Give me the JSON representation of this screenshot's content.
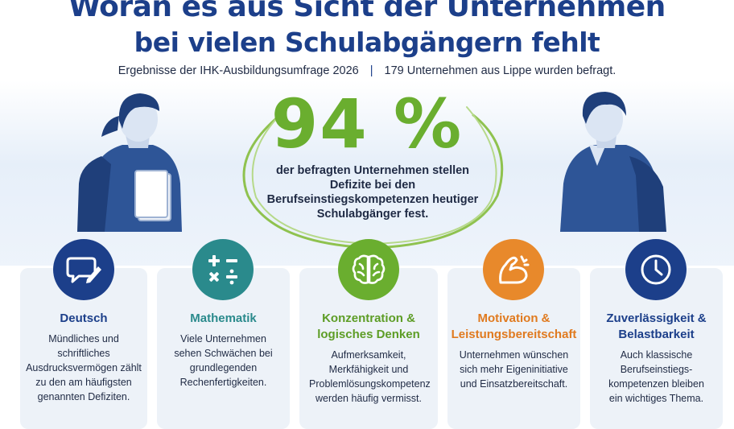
{
  "header": {
    "title_line1": "Woran es aus Sicht der Unternehmen",
    "title_line2": "bei vielen Schulabgängern fehlt",
    "subtitle_left": "Ergebnisse der IHK-Ausbildungsumfrage 2026",
    "subtitle_separator": "|",
    "subtitle_right": "179 Unternehmen aus Lippe wurden befragt."
  },
  "highlight": {
    "value": "94 %",
    "description": "der befragten Unternehmen stellen Defizite bei den Berufseinstiegskompetenzen heutiger Schulabgänger fest."
  },
  "colors": {
    "title": "#1c3f8a",
    "accent_green": "#6aae2f",
    "navy": "#1c3f8a",
    "teal": "#2a8a8c",
    "green": "#6aae2f",
    "orange": "#e8892b"
  },
  "cards": [
    {
      "icon": "speech-bubble-pen-icon",
      "title": "Deutsch",
      "body": "Mündliches und schriftliches Ausdrucksvermögen zählt zu den am häufigsten genannten Defiziten."
    },
    {
      "icon": "math-operators-icon",
      "title": "Mathematik",
      "body": "Viele Unternehmen sehen Schwächen bei grundlegenden Rechenfertigkeiten."
    },
    {
      "icon": "brain-icon",
      "title": "Konzentration & logisches Denken",
      "body": "Aufmerksamkeit, Merkfähigkeit und Problemlösungskompetenz werden häufig vermisst."
    },
    {
      "icon": "flexed-arm-icon",
      "title": "Motivation & Leistungsbereitschaft",
      "body": "Unternehmen wünschen sich mehr Eigeninitiative und Einsatzbereitschaft."
    },
    {
      "icon": "clock-icon",
      "title": "Zuverlässigkeit & Belastbarkeit",
      "body": "Auch klassische Berufseinstiegs-kompetenzen bleiben ein wichtiges Thema."
    }
  ]
}
